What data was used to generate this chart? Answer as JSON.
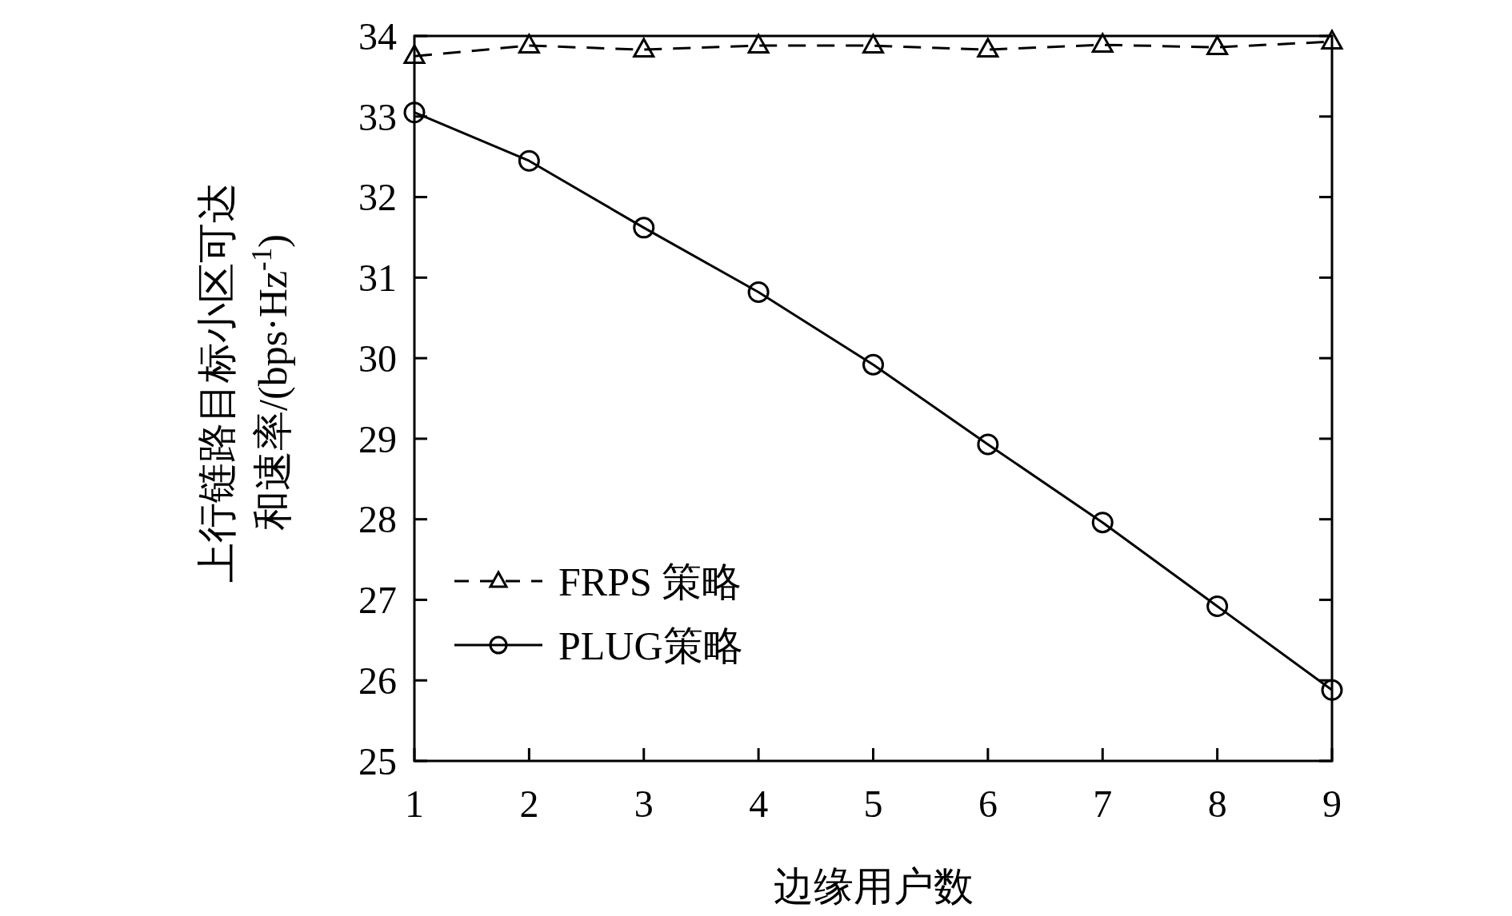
{
  "chart_data": {
    "type": "line",
    "xlabel": "边缘用户数",
    "ylabel": "上行链路目标小区可达和速率/(bps·Hz$^{-1}$)",
    "x": [
      1,
      2,
      3,
      4,
      5,
      6,
      7,
      8,
      9
    ],
    "xlim": [
      1,
      9
    ],
    "xticks": [
      1,
      2,
      3,
      4,
      5,
      6,
      7,
      8,
      9
    ],
    "ylim": [
      25,
      34
    ],
    "yticks": [
      25,
      26,
      27,
      28,
      29,
      30,
      31,
      32,
      33,
      34
    ],
    "grid": false,
    "legend": "bottom left",
    "series": [
      {
        "name": "FRPS 策略",
        "color": "#000000",
        "marker": "triangle",
        "line_style": "dashed",
        "values": [
          33.75,
          33.88,
          33.83,
          33.88,
          33.88,
          33.83,
          33.89,
          33.86,
          33.93
        ]
      },
      {
        "name": "PLUG策略",
        "color": "#000000",
        "marker": "circle",
        "line_style": "solid",
        "values": [
          33.05,
          32.45,
          31.62,
          30.82,
          29.92,
          28.93,
          27.96,
          26.92,
          25.88
        ]
      }
    ]
  }
}
